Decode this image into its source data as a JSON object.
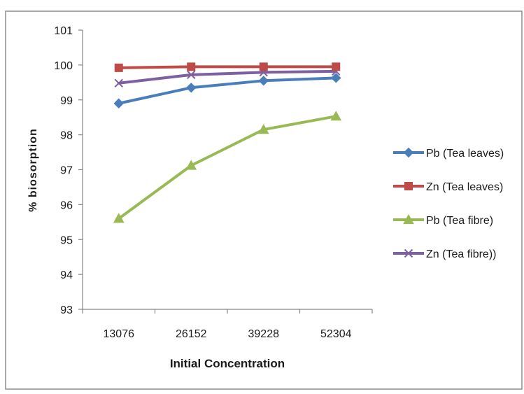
{
  "chart_data": {
    "type": "line",
    "title": "",
    "xlabel": "Initial Concentration",
    "ylabel": "% biosorption",
    "categories": [
      "13076",
      "26152",
      "39228",
      "52304"
    ],
    "ylim": [
      93,
      101
    ],
    "yticks": [
      "93",
      "94",
      "95",
      "96",
      "97",
      "98",
      "99",
      "100",
      "101"
    ],
    "grid": false,
    "legend_position": "right",
    "series": [
      {
        "name": "Pb (Tea leaves)",
        "values": [
          98.9,
          99.35,
          99.55,
          99.63
        ],
        "color": "#4a7ebb",
        "marker": "diamond"
      },
      {
        "name": "Zn (Tea leaves)",
        "values": [
          99.92,
          99.95,
          99.95,
          99.95
        ],
        "color": "#be4b48",
        "marker": "square"
      },
      {
        "name": "Pb (Tea fibre)",
        "values": [
          95.6,
          97.12,
          98.15,
          98.53
        ],
        "color": "#98b954",
        "marker": "triangle"
      },
      {
        "name": "Zn (Tea fibre))",
        "values": [
          99.48,
          99.72,
          99.79,
          99.82
        ],
        "color": "#7d60a0",
        "marker": "x"
      }
    ]
  }
}
